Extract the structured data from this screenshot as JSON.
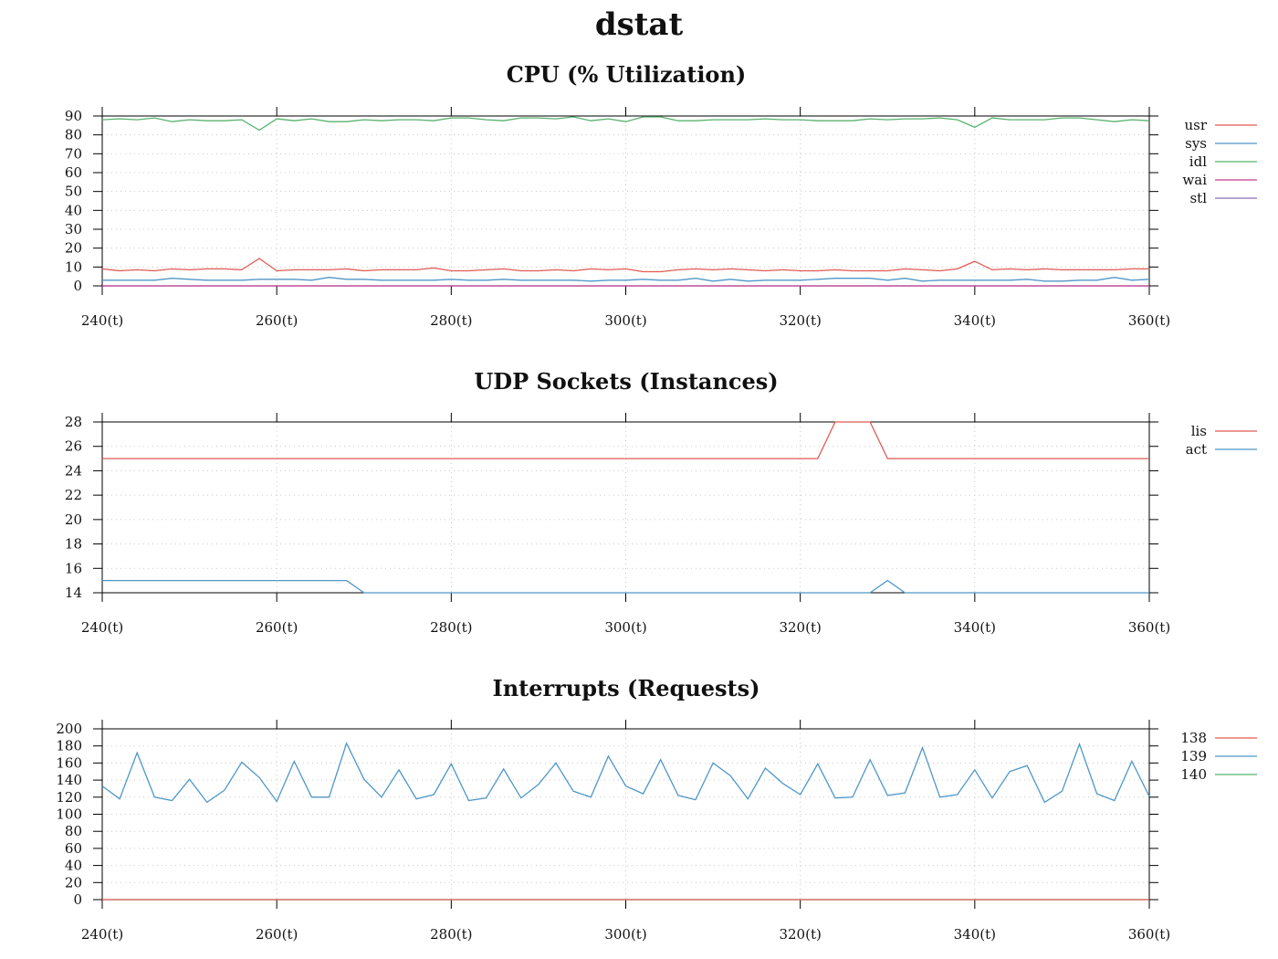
{
  "page_title": "dstat",
  "chart_data": [
    {
      "type": "line",
      "title": "CPU (% Utilization)",
      "xlabel": "",
      "ylabel": "",
      "xlim": [
        240,
        360
      ],
      "ylim": [
        0,
        90
      ],
      "x_ticks": [
        240,
        260,
        280,
        300,
        320,
        340,
        360
      ],
      "x_tick_labels": [
        "240(t)",
        "260(t)",
        "280(t)",
        "300(t)",
        "320(t)",
        "340(t)",
        "360(t)"
      ],
      "y_ticks": [
        0,
        10,
        20,
        30,
        40,
        50,
        60,
        70,
        80,
        90
      ],
      "y_tick_labels": [
        "0",
        "10",
        "20",
        "30",
        "40",
        "50",
        "60",
        "70",
        "80",
        "90"
      ],
      "grid": true,
      "legend_position": "right",
      "x_start": 240,
      "x_step": 2,
      "series": [
        {
          "name": "usr",
          "color": "#e05a52",
          "values": [
            9,
            8,
            8.5,
            8,
            9,
            8.5,
            9,
            9,
            8.5,
            14.5,
            8,
            8.5,
            8.5,
            8.5,
            9,
            8,
            8.5,
            8.5,
            8.5,
            9.5,
            8,
            8,
            8.5,
            9,
            8,
            8,
            8.5,
            8,
            9,
            8.5,
            9,
            7.5,
            7.5,
            8.5,
            9,
            8.5,
            9,
            8.5,
            8,
            8.5,
            8,
            8,
            8.5,
            8,
            8,
            8,
            9,
            8.5,
            8,
            9,
            13,
            8.5,
            9,
            8.5,
            9,
            8.5,
            8.5,
            8.5,
            8.5,
            9,
            9
          ]
        },
        {
          "name": "sys",
          "color": "#4f97c7",
          "values": [
            3,
            3,
            3,
            3,
            4,
            3.5,
            3,
            3,
            3,
            3.5,
            3.5,
            3.5,
            3,
            4.5,
            3.5,
            3.5,
            3,
            3,
            3,
            3,
            3.5,
            3,
            3,
            3.5,
            3,
            3,
            3,
            3,
            2.5,
            3,
            3,
            3.5,
            3,
            3,
            4,
            2.5,
            3.5,
            2.5,
            3,
            3,
            3,
            3.5,
            4,
            4,
            4,
            3,
            4,
            2.5,
            3,
            3,
            3,
            3,
            3,
            3.5,
            2.5,
            2.5,
            3,
            3,
            4.5,
            3,
            3.5
          ]
        },
        {
          "name": "idl",
          "color": "#58b26e",
          "values": [
            88,
            88.5,
            88,
            89,
            87,
            88,
            87.5,
            87.5,
            88,
            82.5,
            88.5,
            87.5,
            88.5,
            87,
            87,
            88,
            87.5,
            88,
            88,
            87.5,
            89,
            89,
            88,
            87.5,
            89,
            89,
            88.5,
            89.5,
            87.5,
            88.5,
            87,
            89.5,
            89.5,
            87.5,
            87.5,
            88,
            88,
            88,
            88.5,
            88,
            88,
            87.5,
            87.5,
            87.5,
            88.5,
            88,
            88.5,
            88.5,
            89,
            88,
            84,
            89,
            88,
            88,
            88,
            89,
            89,
            88,
            87,
            88,
            87.5
          ]
        },
        {
          "name": "wai",
          "color": "#c53d91",
          "values": [
            0,
            0,
            0,
            0,
            0,
            0,
            0,
            0,
            0,
            0,
            0,
            0,
            0,
            0,
            0,
            0,
            0,
            0,
            0,
            0,
            0,
            0,
            0,
            0,
            0,
            0,
            0,
            0,
            0,
            0,
            0,
            0,
            0,
            0,
            0,
            0,
            0,
            0,
            0,
            0,
            0,
            0,
            0,
            0,
            0,
            0,
            0,
            0,
            0,
            0,
            0,
            0,
            0,
            0,
            0,
            0,
            0,
            0,
            0,
            0,
            0
          ]
        },
        {
          "name": "stl",
          "color": "#8b72b8",
          "values": [
            0,
            0,
            0,
            0,
            0,
            0,
            0,
            0,
            0,
            0,
            0,
            0,
            0,
            0,
            0,
            0,
            0,
            0,
            0,
            0,
            0,
            0,
            0,
            0,
            0,
            0,
            0,
            0,
            0,
            0,
            0,
            0,
            0,
            0,
            0,
            0,
            0,
            0,
            0,
            0,
            0,
            0,
            0,
            0,
            0,
            0,
            0,
            0,
            0,
            0,
            0,
            0,
            0,
            0,
            0,
            0,
            0,
            0,
            0,
            0,
            0
          ]
        }
      ]
    },
    {
      "type": "line",
      "title": "UDP Sockets (Instances)",
      "xlabel": "",
      "ylabel": "",
      "xlim": [
        240,
        360
      ],
      "ylim": [
        14,
        28
      ],
      "x_ticks": [
        240,
        260,
        280,
        300,
        320,
        340,
        360
      ],
      "x_tick_labels": [
        "240(t)",
        "260(t)",
        "280(t)",
        "300(t)",
        "320(t)",
        "340(t)",
        "360(t)"
      ],
      "y_ticks": [
        14,
        16,
        18,
        20,
        22,
        24,
        26,
        28
      ],
      "y_tick_labels": [
        "14",
        "16",
        "18",
        "20",
        "22",
        "24",
        "26",
        "28"
      ],
      "grid": true,
      "legend_position": "right",
      "x_start": 240,
      "x_step": 2,
      "series": [
        {
          "name": "lis",
          "color": "#e05a52",
          "values": [
            25,
            25,
            25,
            25,
            25,
            25,
            25,
            25,
            25,
            25,
            25,
            25,
            25,
            25,
            25,
            25,
            25,
            25,
            25,
            25,
            25,
            25,
            25,
            25,
            25,
            25,
            25,
            25,
            25,
            25,
            25,
            25,
            25,
            25,
            25,
            25,
            25,
            25,
            25,
            25,
            25,
            25,
            28,
            28,
            28,
            25,
            25,
            25,
            25,
            25,
            25,
            25,
            25,
            25,
            25,
            25,
            25,
            25,
            25,
            25,
            25
          ]
        },
        {
          "name": "act",
          "color": "#4f97c7",
          "values": [
            15,
            15,
            15,
            15,
            15,
            15,
            15,
            15,
            15,
            15,
            15,
            15,
            15,
            15,
            15,
            14,
            14,
            14,
            14,
            14,
            14,
            14,
            14,
            14,
            14,
            14,
            14,
            14,
            14,
            14,
            14,
            14,
            14,
            14,
            14,
            14,
            14,
            14,
            14,
            14,
            14,
            14,
            14,
            14,
            14,
            15,
            14,
            14,
            14,
            14,
            14,
            14,
            14,
            14,
            14,
            14,
            14,
            14,
            14,
            14,
            14
          ]
        }
      ]
    },
    {
      "type": "line",
      "title": "Interrupts (Requests)",
      "xlabel": "",
      "ylabel": "",
      "xlim": [
        240,
        360
      ],
      "ylim": [
        0,
        200
      ],
      "x_ticks": [
        240,
        260,
        280,
        300,
        320,
        340,
        360
      ],
      "x_tick_labels": [
        "240(t)",
        "260(t)",
        "280(t)",
        "300(t)",
        "320(t)",
        "340(t)",
        "360(t)"
      ],
      "y_ticks": [
        0,
        20,
        40,
        60,
        80,
        100,
        120,
        140,
        160,
        180,
        200
      ],
      "y_tick_labels": [
        "0",
        "20",
        "40",
        "60",
        "80",
        "100",
        "120",
        "140",
        "160",
        "180",
        "200"
      ],
      "grid": true,
      "legend_position": "right",
      "x_start": 240,
      "x_step": 2,
      "series": [
        {
          "name": "138",
          "color": "#e05a52",
          "values": [
            0,
            0,
            0,
            0,
            0,
            0,
            0,
            0,
            0,
            0,
            0,
            0,
            0,
            0,
            0,
            0,
            0,
            0,
            0,
            0,
            0,
            0,
            0,
            0,
            0,
            0,
            0,
            0,
            0,
            0,
            0,
            0,
            0,
            0,
            0,
            0,
            0,
            0,
            0,
            0,
            0,
            0,
            0,
            0,
            0,
            0,
            0,
            0,
            0,
            0,
            0,
            0,
            0,
            0,
            0,
            0,
            0,
            0,
            0,
            0,
            0
          ]
        },
        {
          "name": "139",
          "color": "#4f97c7",
          "values": [
            133,
            118,
            172,
            120,
            116,
            141,
            114,
            128,
            161,
            143,
            115,
            162,
            120,
            120,
            183,
            141,
            120,
            152,
            118,
            123,
            159,
            116,
            119,
            153,
            119,
            135,
            160,
            127,
            120,
            168,
            133,
            124,
            164,
            122,
            117,
            160,
            145,
            118,
            154,
            136,
            123,
            159,
            119,
            120,
            164,
            122,
            125,
            178,
            120,
            123,
            152,
            119,
            150,
            157,
            114,
            127,
            182,
            124,
            116,
            162,
            121
          ]
        },
        {
          "name": "140",
          "color": "#58b26e",
          "values": [
            0,
            0,
            0,
            0,
            0,
            0,
            0,
            0,
            0,
            0,
            0,
            0,
            0,
            0,
            0,
            0,
            0,
            0,
            0,
            0,
            0,
            0,
            0,
            0,
            0,
            0,
            0,
            0,
            0,
            0,
            0,
            0,
            0,
            0,
            0,
            0,
            0,
            0,
            0,
            0,
            0,
            0,
            0,
            0,
            0,
            0,
            0,
            0,
            0,
            0,
            0,
            0,
            0,
            0,
            0,
            0,
            0,
            0,
            0,
            0,
            0
          ]
        }
      ]
    }
  ]
}
